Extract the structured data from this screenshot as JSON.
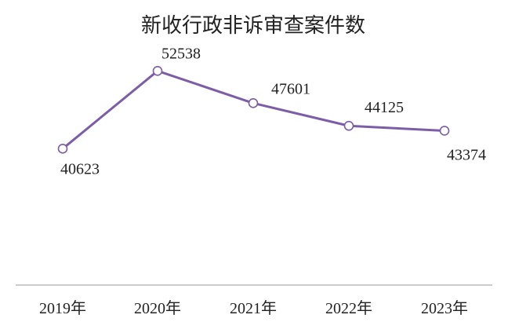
{
  "chart_data": {
    "type": "line",
    "title": "新收行政非诉审查案件数",
    "xlabel": "",
    "ylabel": "",
    "categories": [
      "2019年",
      "2020年",
      "2021年",
      "2022年",
      "2023年"
    ],
    "series": [
      {
        "values": [
          40623,
          52538,
          47601,
          44125,
          43374
        ],
        "color": "#7B5EA7"
      }
    ],
    "data_labels": [
      "40623",
      "52538",
      "47601",
      "44125",
      "43374"
    ],
    "ylim": [
      0,
      60000
    ],
    "grid": false,
    "legend": "none",
    "marker": "hollow-circle"
  }
}
